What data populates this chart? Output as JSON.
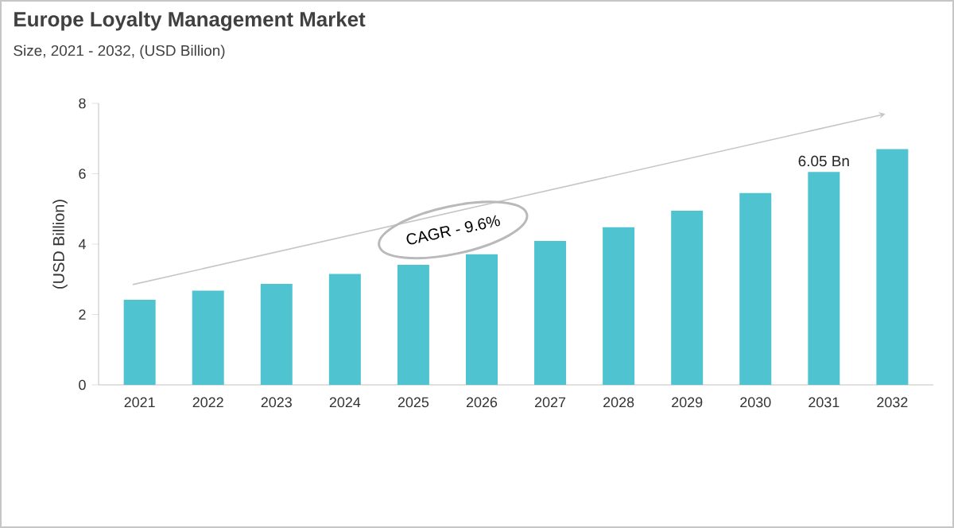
{
  "chart_data": {
    "type": "bar",
    "title": "Europe Loyalty Management Market",
    "subtitle": "Size, 2021 - 2032, (USD Billion)",
    "ylabel": "(USD Billion)",
    "categories": [
      "2021",
      "2022",
      "2023",
      "2024",
      "2025",
      "2026",
      "2027",
      "2028",
      "2029",
      "2030",
      "2031",
      "2032"
    ],
    "values": [
      2.42,
      2.68,
      2.87,
      3.15,
      3.41,
      3.71,
      4.09,
      4.48,
      4.95,
      5.45,
      6.05,
      6.7
    ],
    "value_labels": [
      null,
      null,
      null,
      null,
      null,
      null,
      null,
      null,
      null,
      null,
      "6.05 Bn",
      null
    ],
    "color": "#4fc3cf",
    "ylim": [
      0,
      8
    ],
    "yticks": [
      0,
      2,
      4,
      6,
      8
    ],
    "grid": false,
    "annotations": [
      "CAGR - 9.6%"
    ]
  }
}
